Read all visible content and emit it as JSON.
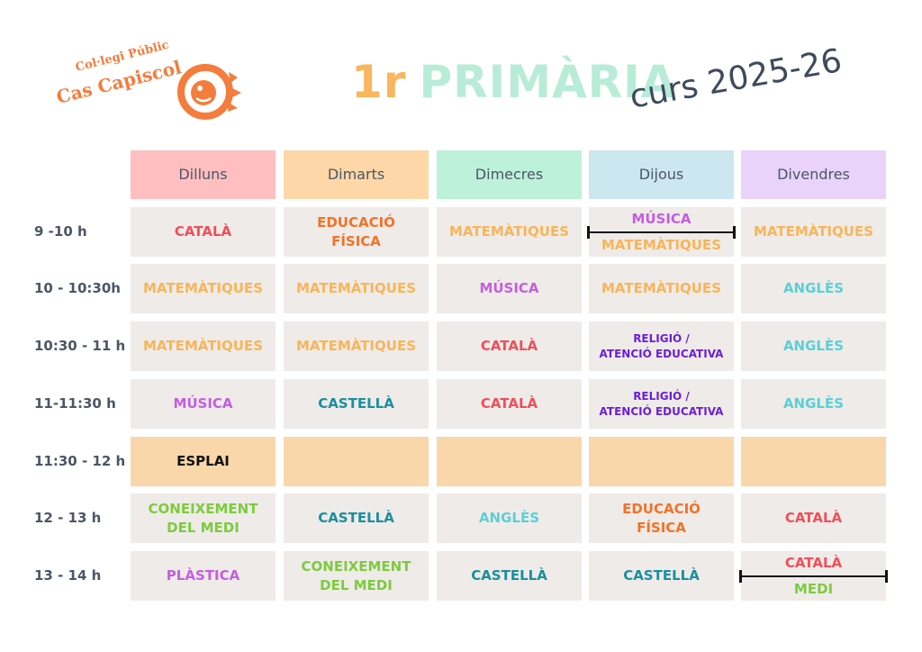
{
  "logo": {
    "line1": "Col·legi Públic",
    "line2": "Cas Capiscol"
  },
  "title": {
    "grade": "1r",
    "level": "PRIMÀRIA"
  },
  "subtitle": "curs 2025-26",
  "colors": {
    "catala": "#ef4f5b",
    "matematiques": "#f8b558",
    "musica": "#c45ee0",
    "educacio_fisica": "#f27227",
    "angles": "#5ad0d5",
    "castella": "#1a8f9e",
    "religio": "#6b1fd6",
    "coneixement": "#7dcb3f",
    "plastica": "#c45ee0",
    "medi": "#7dcb3f",
    "esplai_bg": "#fad7aa",
    "cell_bg": "#efebe8"
  },
  "days": [
    {
      "label": "Dilluns",
      "bg": "#ffbfc1"
    },
    {
      "label": "Dimarts",
      "bg": "#fed7a8"
    },
    {
      "label": "Dimecres",
      "bg": "#bdf1da"
    },
    {
      "label": "Dijous",
      "bg": "#cce7ef"
    },
    {
      "label": "Divendres",
      "bg": "#e9d3fb"
    }
  ],
  "times": [
    "9 -10 h",
    "10 - 10:30h",
    "10:30 - 11 h",
    "11-11:30 h",
    "11:30 - 12 h",
    "12 - 13 h",
    "13 - 14 h"
  ],
  "schedule": [
    [
      {
        "lines": [
          "CATALÀ"
        ],
        "color": "#ef4f5b"
      },
      {
        "lines": [
          "EDUCACIÓ",
          "FÍSICA"
        ],
        "color": "#f27227"
      },
      {
        "lines": [
          "MATEMÀTIQUES"
        ],
        "color": "#f8b558"
      },
      {
        "split": [
          {
            "text": "MÚSICA",
            "color": "#c45ee0"
          },
          {
            "text": "MATEMÀTIQUES",
            "color": "#f8b558"
          }
        ]
      },
      {
        "lines": [
          "MATEMÀTIQUES"
        ],
        "color": "#f8b558"
      }
    ],
    [
      {
        "lines": [
          "MATEMÀTIQUES"
        ],
        "color": "#f8b558"
      },
      {
        "lines": [
          "MATEMÀTIQUES"
        ],
        "color": "#f8b558"
      },
      {
        "lines": [
          "MÚSICA"
        ],
        "color": "#c45ee0"
      },
      {
        "lines": [
          "MATEMÀTIQUES"
        ],
        "color": "#f8b558"
      },
      {
        "lines": [
          "ANGLÈS"
        ],
        "color": "#5ad0d5"
      }
    ],
    [
      {
        "lines": [
          "MATEMÀTIQUES"
        ],
        "color": "#f8b558"
      },
      {
        "lines": [
          "MATEMÀTIQUES"
        ],
        "color": "#f8b558"
      },
      {
        "lines": [
          "CATALÀ"
        ],
        "color": "#ef4f5b"
      },
      {
        "lines": [
          "RELIGIÓ /",
          "ATENCIÓ EDUCATIVA"
        ],
        "color": "#6b1fd6",
        "small": true
      },
      {
        "lines": [
          "ANGLÈS"
        ],
        "color": "#5ad0d5"
      }
    ],
    [
      {
        "lines": [
          "MÚSICA"
        ],
        "color": "#c45ee0"
      },
      {
        "lines": [
          "CASTELLÀ"
        ],
        "color": "#1a8f9e"
      },
      {
        "lines": [
          "CATALÀ"
        ],
        "color": "#ef4f5b"
      },
      {
        "lines": [
          "RELIGIÓ /",
          "ATENCIÓ EDUCATIVA"
        ],
        "color": "#6b1fd6",
        "small": true
      },
      {
        "lines": [
          "ANGLÈS"
        ],
        "color": "#5ad0d5"
      }
    ],
    [
      {
        "lines": [
          "ESPLAI"
        ],
        "color": "#111111",
        "bg": "#fad7aa"
      },
      {
        "lines": [],
        "bg": "#fad7aa"
      },
      {
        "lines": [],
        "bg": "#fad7aa"
      },
      {
        "lines": [],
        "bg": "#fad7aa"
      },
      {
        "lines": [],
        "bg": "#fad7aa"
      }
    ],
    [
      {
        "lines": [
          "CONEIXEMENT",
          "DEL MEDI"
        ],
        "color": "#7dcb3f"
      },
      {
        "lines": [
          "CASTELLÀ"
        ],
        "color": "#1a8f9e"
      },
      {
        "lines": [
          "ANGLÈS"
        ],
        "color": "#5ad0d5"
      },
      {
        "lines": [
          "EDUCACIÓ",
          "FÍSICA"
        ],
        "color": "#f27227"
      },
      {
        "lines": [
          "CATALÀ"
        ],
        "color": "#ef4f5b"
      }
    ],
    [
      {
        "lines": [
          "PLÀSTICA"
        ],
        "color": "#c45ee0"
      },
      {
        "lines": [
          "CONEIXEMENT",
          "DEL MEDI"
        ],
        "color": "#7dcb3f"
      },
      {
        "lines": [
          "CASTELLÀ"
        ],
        "color": "#1a8f9e"
      },
      {
        "lines": [
          "CASTELLÀ"
        ],
        "color": "#1a8f9e"
      },
      {
        "split": [
          {
            "text": "CATALÀ",
            "color": "#ef4f5b"
          },
          {
            "text": "MEDI",
            "color": "#7dcb3f"
          }
        ]
      }
    ]
  ]
}
